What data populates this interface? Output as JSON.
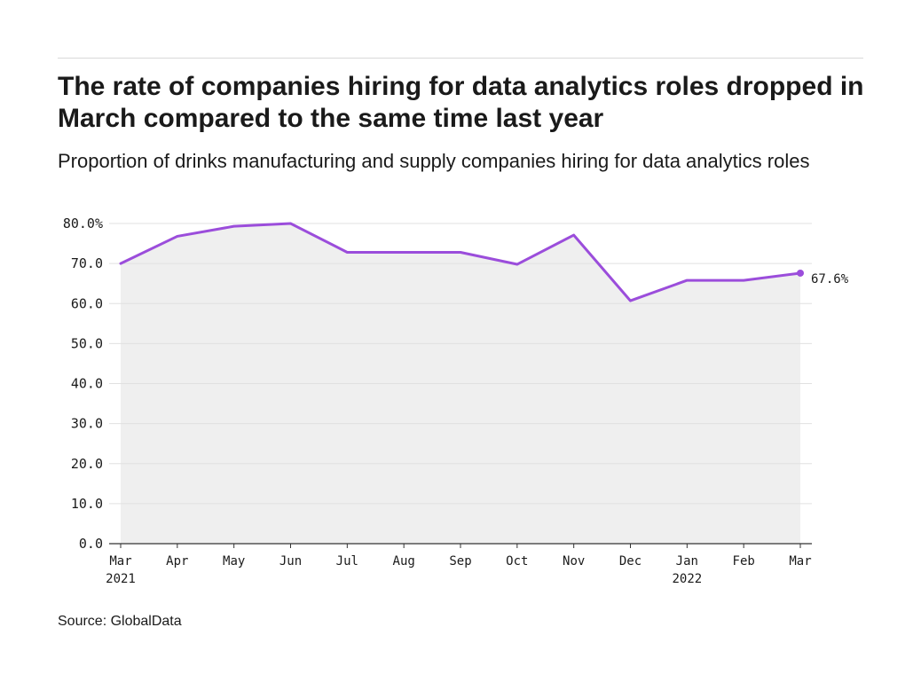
{
  "header": {
    "title": "The rate of companies hiring for data analytics roles dropped in March compared to the same time last year",
    "subtitle": "Proportion of drinks manufacturing and supply companies hiring for data analytics roles"
  },
  "footer": {
    "source": "Source: GlobalData"
  },
  "chart_data": {
    "type": "area",
    "title": "The rate of companies hiring for data analytics roles dropped in March compared to the same time last year",
    "subtitle": "Proportion of drinks manufacturing and supply companies hiring for data analytics roles",
    "xlabel": "",
    "ylabel": "",
    "categories": [
      "Mar 2021",
      "Apr 2021",
      "May 2021",
      "Jun 2021",
      "Jul 2021",
      "Aug 2021",
      "Sep 2021",
      "Oct 2021",
      "Nov 2021",
      "Dec 2021",
      "Jan 2022",
      "Feb 2022",
      "Mar 2022"
    ],
    "x_tick_labels": [
      {
        "month": "Mar",
        "year": "2021"
      },
      {
        "month": "Apr",
        "year": ""
      },
      {
        "month": "May",
        "year": ""
      },
      {
        "month": "Jun",
        "year": ""
      },
      {
        "month": "Jul",
        "year": ""
      },
      {
        "month": "Aug",
        "year": ""
      },
      {
        "month": "Sep",
        "year": ""
      },
      {
        "month": "Oct",
        "year": ""
      },
      {
        "month": "Nov",
        "year": ""
      },
      {
        "month": "Dec",
        "year": ""
      },
      {
        "month": "Jan",
        "year": "2022"
      },
      {
        "month": "Feb",
        "year": ""
      },
      {
        "month": "Mar",
        "year": ""
      }
    ],
    "series": [
      {
        "values": [
          70.0,
          76.8,
          79.3,
          80.0,
          72.8,
          72.8,
          72.8,
          69.8,
          77.1,
          60.7,
          65.8,
          65.8,
          67.6
        ]
      }
    ],
    "ylim": [
      0,
      80
    ],
    "y_ticks": [
      0,
      10,
      20,
      30,
      40,
      50,
      60,
      70,
      80
    ],
    "y_tick_labels": [
      "0.0",
      "10.0",
      "20.0",
      "30.0",
      "40.0",
      "50.0",
      "60.0",
      "70.0",
      "80.0%"
    ],
    "end_label": "67.6%",
    "grid": "horizontal",
    "line_color": "#9b4ddb",
    "fill_color": "#efefef",
    "grid_color": "#e0e0e0",
    "axis_color": "#333333"
  }
}
